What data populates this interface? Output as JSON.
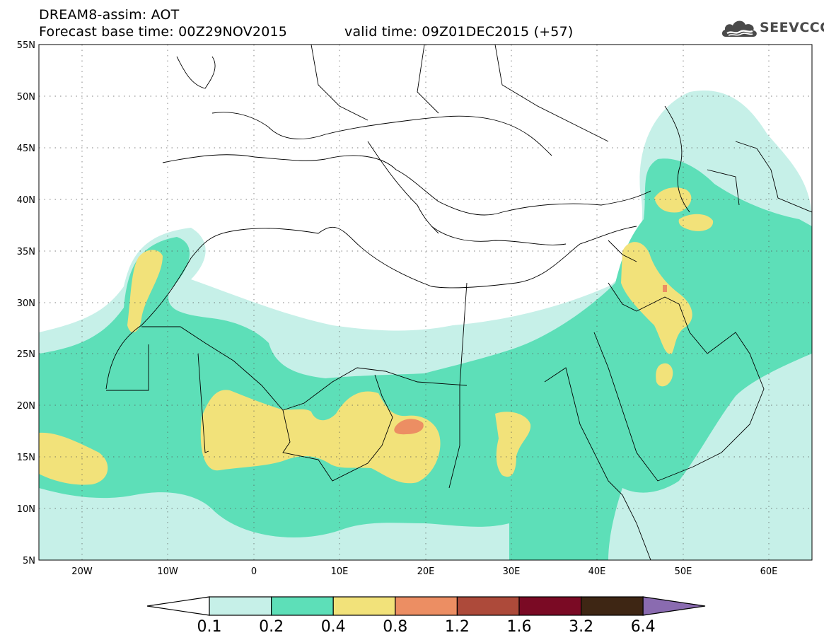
{
  "header": {
    "title_line1": "DREAM8-assim: AOT",
    "base_time": "Forecast base time: 00Z29NOV2015",
    "valid_time": "valid time: 09Z01DEC2015 (+57)"
  },
  "logo": {
    "text": "SEEVCCC",
    "icon": "cloud-logo-icon"
  },
  "map": {
    "lat_labels": [
      "55N",
      "50N",
      "45N",
      "40N",
      "35N",
      "30N",
      "25N",
      "20N",
      "15N",
      "10N",
      "5N"
    ],
    "lon_labels": [
      "20W",
      "10W",
      "0",
      "10E",
      "20E",
      "30E",
      "40E",
      "50E",
      "60E"
    ],
    "lat_range": [
      5,
      55
    ],
    "lon_range": [
      -25,
      65
    ],
    "grid": "dotted"
  },
  "colorbar": {
    "levels": [
      "0.1",
      "0.2",
      "0.4",
      "0.8",
      "1.2",
      "1.6",
      "3.2",
      "6.4"
    ],
    "colors": {
      "below": "#ffffff",
      "c1": "#c6f0e8",
      "c2": "#5ddfb8",
      "c3": "#f2e27a",
      "c4": "#ec8e63",
      "c5": "#ad4a3a",
      "c6": "#7a0a24",
      "c7": "#3e2614",
      "above": "#8a6bb0"
    }
  }
}
